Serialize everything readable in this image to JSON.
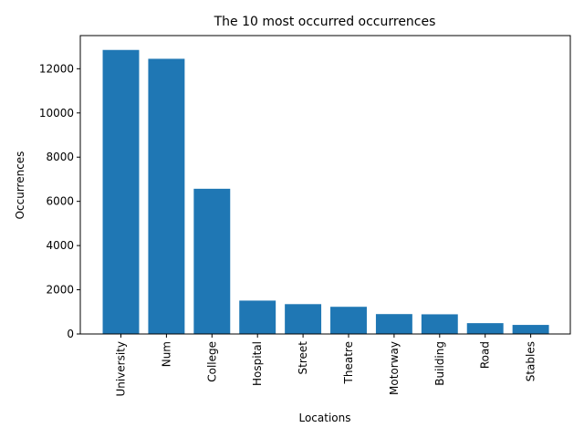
{
  "chart_data": {
    "type": "bar",
    "title": "The 10 most occurred occurrences",
    "xlabel": "Locations",
    "ylabel": "Occurrences",
    "categories": [
      "University",
      "Num",
      "College",
      "Hospital",
      "Street",
      "Theatre",
      "Motorway",
      "Building",
      "Road",
      "Stables"
    ],
    "values": [
      12850,
      12450,
      6570,
      1510,
      1350,
      1230,
      900,
      890,
      490,
      410
    ],
    "ylim": [
      0,
      13500
    ],
    "yticks": [
      0,
      2000,
      4000,
      6000,
      8000,
      10000,
      12000
    ],
    "grid": false,
    "bar_color": "#1f77b4"
  }
}
